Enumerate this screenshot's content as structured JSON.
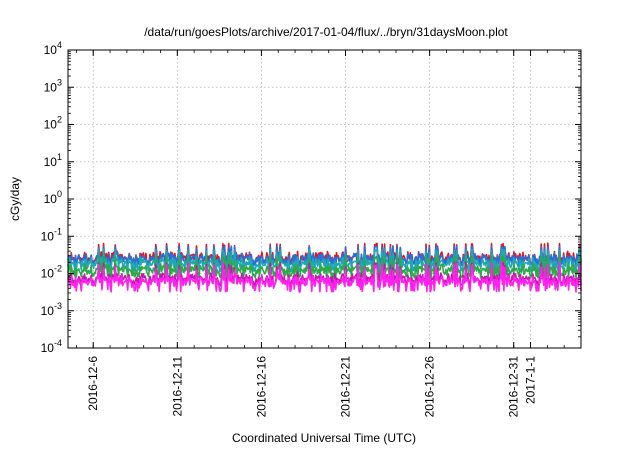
{
  "chart_data": {
    "type": "line",
    "title": "/data/run/goesPlots/archive/2017-01-04/flux/../bryn/31daysMoon.plot",
    "xlabel": "Coordinated Universal Time (UTC)",
    "ylabel": "cGy/day",
    "yscale": "log",
    "ylim": [
      0.0001,
      10000
    ],
    "y_ticks": [
      {
        "value": 0.0001,
        "base": "10",
        "exp": "-4"
      },
      {
        "value": 0.001,
        "base": "10",
        "exp": "-3"
      },
      {
        "value": 0.01,
        "base": "10",
        "exp": "-2"
      },
      {
        "value": 0.1,
        "base": "10",
        "exp": "-1"
      },
      {
        "value": 1,
        "base": "10",
        "exp": "0"
      },
      {
        "value": 10,
        "base": "10",
        "exp": "1"
      },
      {
        "value": 100,
        "base": "10",
        "exp": "2"
      },
      {
        "value": 1000,
        "base": "10",
        "exp": "3"
      },
      {
        "value": 10000,
        "base": "10",
        "exp": "4"
      }
    ],
    "xlim": [
      "2016-12-04T12:00",
      "2017-01-04T00:00"
    ],
    "x_ticks": [
      {
        "date": "2016-12-06",
        "label": "2016-12-6"
      },
      {
        "date": "2016-12-11",
        "label": "2016-12-11"
      },
      {
        "date": "2016-12-16",
        "label": "2016-12-16"
      },
      {
        "date": "2016-12-21",
        "label": "2016-12-21"
      },
      {
        "date": "2016-12-26",
        "label": "2016-12-26"
      },
      {
        "date": "2016-12-31",
        "label": "2016-12-31"
      },
      {
        "date": "2017-01-01",
        "label": "2017-1-1"
      }
    ],
    "grid": true,
    "legend": "none",
    "series": [
      {
        "color": "#e8141c",
        "base": 0.026,
        "peak": 0.065,
        "dip": 0.018
      },
      {
        "color": "#2a6fd6",
        "base": 0.024,
        "peak": 0.055,
        "dip": 0.016
      },
      {
        "color": "#1fa8b4",
        "base": 0.018,
        "peak": 0.045,
        "dip": 0.011
      },
      {
        "color": "#2ea84a",
        "base": 0.012,
        "peak": 0.03,
        "dip": 0.0075
      },
      {
        "color": "#c01aa8",
        "base": 0.007,
        "peak": 0.02,
        "dip": 0.0045
      },
      {
        "color": "#ff22ee",
        "base": 0.0058,
        "peak": 0.022,
        "dip": 0.0032
      }
    ]
  }
}
